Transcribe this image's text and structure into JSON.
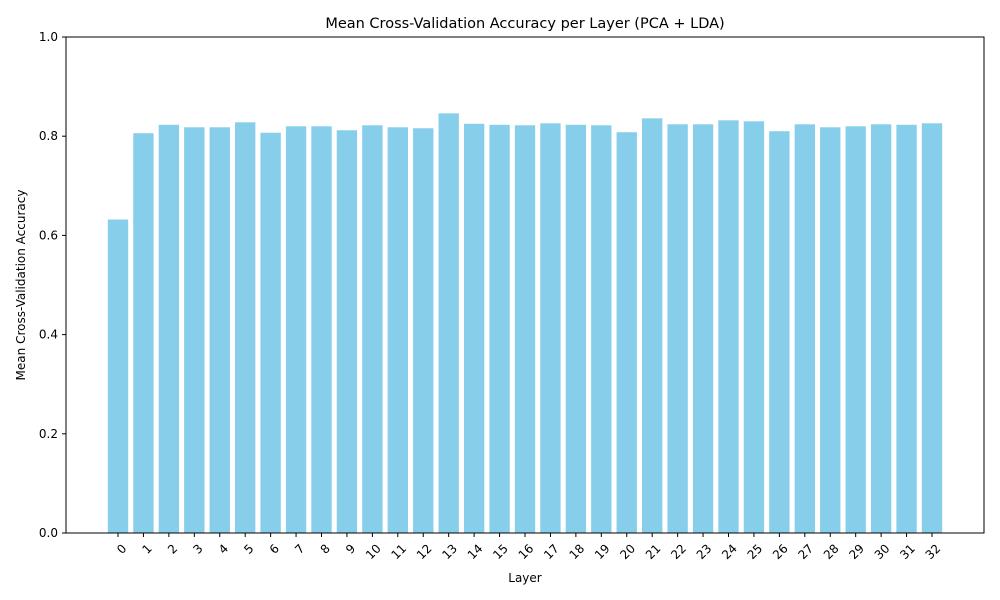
{
  "chart_data": {
    "type": "bar",
    "title": "Mean Cross-Validation Accuracy per Layer (PCA + LDA)",
    "xlabel": "Layer",
    "ylabel": "Mean Cross-Validation Accuracy",
    "ylim": [
      0,
      1.0
    ],
    "yticks": [
      "0.0",
      "0.2",
      "0.4",
      "0.6",
      "0.8",
      "1.0"
    ],
    "grid": false,
    "bar_color": "#87ceeb",
    "categories": [
      "0",
      "1",
      "2",
      "3",
      "4",
      "5",
      "6",
      "7",
      "8",
      "9",
      "10",
      "11",
      "12",
      "13",
      "14",
      "15",
      "16",
      "17",
      "18",
      "19",
      "20",
      "21",
      "22",
      "23",
      "24",
      "25",
      "26",
      "27",
      "28",
      "29",
      "30",
      "31",
      "32"
    ],
    "values": [
      0.632,
      0.806,
      0.823,
      0.818,
      0.818,
      0.828,
      0.807,
      0.82,
      0.82,
      0.812,
      0.822,
      0.818,
      0.816,
      0.846,
      0.825,
      0.823,
      0.822,
      0.826,
      0.823,
      0.822,
      0.808,
      0.836,
      0.824,
      0.824,
      0.832,
      0.83,
      0.81,
      0.824,
      0.818,
      0.82,
      0.824,
      0.823,
      0.826
    ]
  }
}
